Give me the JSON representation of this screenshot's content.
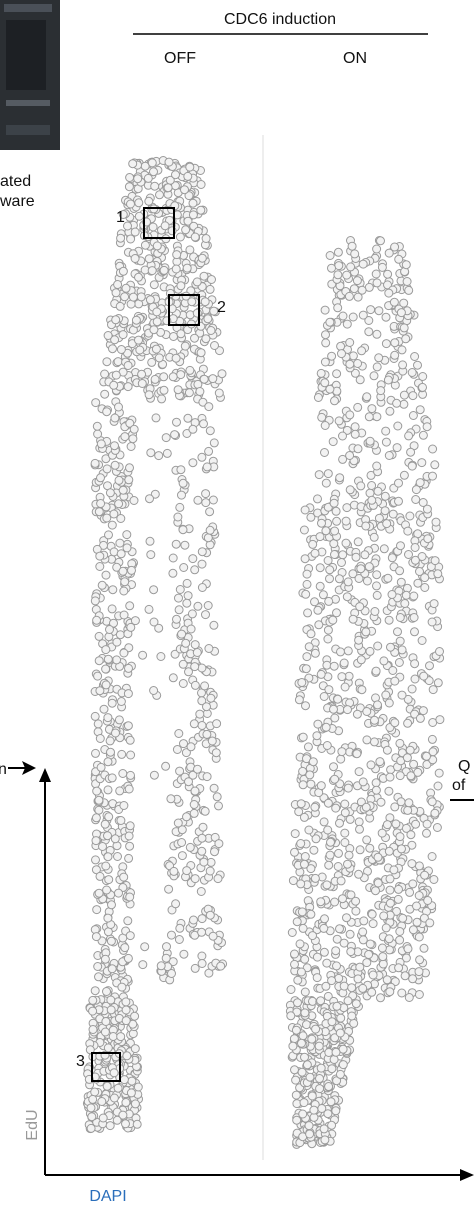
{
  "header": {
    "title": "CDC6 induction",
    "conditions": [
      "OFF",
      "ON"
    ]
  },
  "left_caption": [
    "ated",
    "ware"
  ],
  "left_arrow_label": "n",
  "right_caption": [
    "Q",
    "of"
  ],
  "boxes": [
    "1",
    "2",
    "3"
  ],
  "axes": {
    "y_label": "EdU",
    "x_label": "DAPI"
  }
}
